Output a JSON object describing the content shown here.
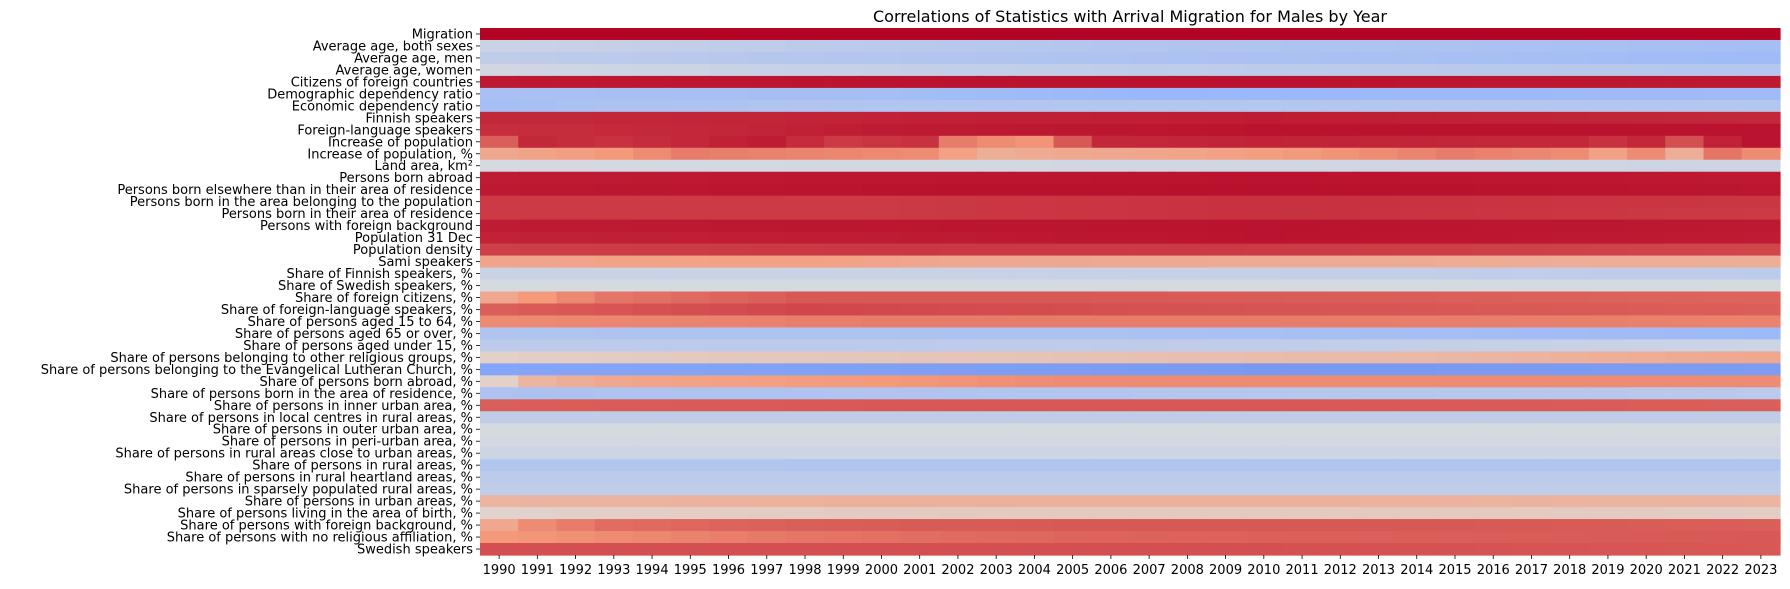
{
  "chart_data": {
    "type": "heatmap",
    "title": "Correlations of Statistics with Arrival Migration for Males by Year",
    "colormap": "coolwarm",
    "vmin": -1,
    "vmax": 1,
    "x": [
      "1990",
      "1991",
      "1992",
      "1993",
      "1994",
      "1995",
      "1996",
      "1997",
      "1998",
      "1999",
      "2000",
      "2001",
      "2002",
      "2003",
      "2004",
      "2005",
      "2006",
      "2007",
      "2008",
      "2009",
      "2010",
      "2011",
      "2012",
      "2013",
      "2014",
      "2015",
      "2016",
      "2017",
      "2018",
      "2019",
      "2020",
      "2021",
      "2022",
      "2023"
    ],
    "y": [
      "Migration",
      "Average age, both sexes",
      "Average age, men",
      "Average age, women",
      "Citizens of foreign countries",
      "Demographic dependency ratio",
      "Economic dependency ratio",
      "Finnish speakers",
      "Foreign-language speakers",
      "Increase of population",
      "Increase of population, %",
      "Land area, km²",
      "Persons born abroad",
      "Persons born elsewhere than in their area of residence",
      "Persons born in the area belonging to the population",
      "Persons born in their area of residence",
      "Persons with foreign background",
      "Population 31 Dec",
      "Population density",
      "Sami speakers",
      "Share of Finnish speakers, %",
      "Share of Swedish speakers, %",
      "Share of foreign citizens, %",
      "Share of foreign-language speakers, %",
      "Share of persons aged 15 to 64, %",
      "Share of persons aged 65 or over, %",
      "Share of persons aged under 15, %",
      "Share of persons belonging to other religious groups, %",
      "Share of persons belonging to the Evangelical Lutheran Church, %",
      "Share of persons born abroad, %",
      "Share of persons born in the area of residence, %",
      "Share of persons in inner urban area, %",
      "Share of persons in local centres in rural areas, %",
      "Share of persons in outer urban area, %",
      "Share of persons in peri-urban area, %",
      "Share of persons in rural areas close to urban areas, %",
      "Share of persons in rural areas, %",
      "Share of persons in rural heartland areas, %",
      "Share of persons in sparsely populated rural areas, %",
      "Share of persons in urban areas, %",
      "Share of persons living in the area of birth, %",
      "Share of persons with foreign background, %",
      "Share of persons with no religious affiliation, %",
      "Swedish speakers"
    ],
    "row_anchors": [
      [
        [
          0,
          1.0
        ],
        [
          33,
          1.0
        ]
      ],
      [
        [
          0,
          -0.12
        ],
        [
          8,
          -0.2
        ],
        [
          17,
          -0.27
        ],
        [
          25,
          -0.3
        ],
        [
          33,
          -0.35
        ]
      ],
      [
        [
          0,
          -0.18
        ],
        [
          8,
          -0.25
        ],
        [
          17,
          -0.3
        ],
        [
          25,
          -0.33
        ],
        [
          33,
          -0.38
        ]
      ],
      [
        [
          0,
          -0.08
        ],
        [
          10,
          -0.15
        ],
        [
          20,
          -0.2
        ],
        [
          33,
          -0.25
        ]
      ],
      [
        [
          0,
          0.93
        ],
        [
          10,
          0.95
        ],
        [
          20,
          0.95
        ],
        [
          33,
          0.93
        ]
      ],
      [
        [
          0,
          -0.32
        ],
        [
          10,
          -0.35
        ],
        [
          17,
          -0.42
        ],
        [
          25,
          -0.4
        ],
        [
          33,
          -0.38
        ]
      ],
      [
        [
          0,
          -0.35
        ],
        [
          3,
          -0.3
        ],
        [
          10,
          -0.27
        ],
        [
          20,
          -0.25
        ],
        [
          33,
          -0.26
        ]
      ],
      [
        [
          0,
          0.88
        ],
        [
          10,
          0.9
        ],
        [
          20,
          0.92
        ],
        [
          33,
          0.88
        ]
      ],
      [
        [
          0,
          0.86
        ],
        [
          5,
          0.88
        ],
        [
          10,
          0.92
        ],
        [
          20,
          0.95
        ],
        [
          33,
          0.95
        ]
      ],
      [
        [
          0,
          0.7
        ],
        [
          1,
          0.88
        ],
        [
          3,
          0.85
        ],
        [
          7,
          0.92
        ],
        [
          9,
          0.82
        ],
        [
          11,
          0.85
        ],
        [
          12,
          0.6
        ],
        [
          13,
          0.55
        ],
        [
          14,
          0.52
        ],
        [
          15,
          0.72
        ],
        [
          16,
          0.88
        ],
        [
          20,
          0.9
        ],
        [
          28,
          0.88
        ],
        [
          29,
          0.85
        ],
        [
          30,
          0.88
        ],
        [
          31,
          0.75
        ],
        [
          32,
          0.9
        ],
        [
          33,
          0.95
        ]
      ],
      [
        [
          0,
          0.4
        ],
        [
          3,
          0.5
        ],
        [
          5,
          0.6
        ],
        [
          11,
          0.55
        ],
        [
          13,
          0.35
        ],
        [
          14,
          0.38
        ],
        [
          18,
          0.42
        ],
        [
          25,
          0.6
        ],
        [
          28,
          0.55
        ],
        [
          29,
          0.45
        ],
        [
          30,
          0.55
        ],
        [
          31,
          0.35
        ],
        [
          32,
          0.62
        ],
        [
          33,
          0.55
        ]
      ],
      [
        [
          0,
          -0.05
        ],
        [
          33,
          -0.1
        ]
      ],
      [
        [
          0,
          0.92
        ],
        [
          10,
          0.94
        ],
        [
          20,
          0.95
        ],
        [
          33,
          0.93
        ]
      ],
      [
        [
          0,
          0.93
        ],
        [
          10,
          0.95
        ],
        [
          20,
          0.96
        ],
        [
          33,
          0.94
        ]
      ],
      [
        [
          0,
          0.82
        ],
        [
          10,
          0.82
        ],
        [
          20,
          0.85
        ],
        [
          33,
          0.83
        ]
      ],
      [
        [
          0,
          0.82
        ],
        [
          10,
          0.82
        ],
        [
          20,
          0.85
        ],
        [
          33,
          0.82
        ]
      ],
      [
        [
          0,
          0.92
        ],
        [
          10,
          0.94
        ],
        [
          20,
          0.95
        ],
        [
          33,
          0.93
        ]
      ],
      [
        [
          0,
          0.9
        ],
        [
          10,
          0.92
        ],
        [
          20,
          0.95
        ],
        [
          33,
          0.92
        ]
      ],
      [
        [
          0,
          0.8
        ],
        [
          10,
          0.83
        ],
        [
          20,
          0.82
        ],
        [
          33,
          0.78
        ]
      ],
      [
        [
          0,
          0.42
        ],
        [
          8,
          0.45
        ],
        [
          12,
          0.4
        ],
        [
          20,
          0.38
        ],
        [
          33,
          0.35
        ]
      ],
      [
        [
          0,
          -0.12
        ],
        [
          10,
          -0.12
        ],
        [
          20,
          -0.15
        ],
        [
          33,
          -0.2
        ]
      ],
      [
        [
          0,
          -0.05
        ],
        [
          33,
          -0.05
        ]
      ],
      [
        [
          0,
          0.4
        ],
        [
          1,
          0.5
        ],
        [
          3,
          0.62
        ],
        [
          8,
          0.72
        ],
        [
          15,
          0.72
        ],
        [
          25,
          0.7
        ],
        [
          33,
          0.68
        ]
      ],
      [
        [
          0,
          0.7
        ],
        [
          2,
          0.72
        ],
        [
          8,
          0.78
        ],
        [
          18,
          0.74
        ],
        [
          25,
          0.72
        ],
        [
          33,
          0.7
        ]
      ],
      [
        [
          0,
          0.55
        ],
        [
          10,
          0.6
        ],
        [
          20,
          0.6
        ],
        [
          33,
          0.58
        ]
      ],
      [
        [
          0,
          -0.28
        ],
        [
          15,
          -0.3
        ],
        [
          25,
          -0.35
        ],
        [
          33,
          -0.4
        ]
      ],
      [
        [
          0,
          -0.2
        ],
        [
          10,
          -0.2
        ],
        [
          20,
          -0.18
        ],
        [
          33,
          -0.1
        ]
      ],
      [
        [
          0,
          0.1
        ],
        [
          5,
          0.15
        ],
        [
          15,
          0.2
        ],
        [
          25,
          0.28
        ],
        [
          33,
          0.4
        ]
      ],
      [
        [
          0,
          -0.55
        ],
        [
          10,
          -0.58
        ],
        [
          20,
          -0.62
        ],
        [
          33,
          -0.6
        ]
      ],
      [
        [
          0,
          0.1
        ],
        [
          1,
          0.3
        ],
        [
          3,
          0.4
        ],
        [
          8,
          0.48
        ],
        [
          15,
          0.55
        ],
        [
          25,
          0.55
        ],
        [
          33,
          0.55
        ]
      ],
      [
        [
          0,
          -0.3
        ],
        [
          10,
          -0.28
        ],
        [
          20,
          -0.25
        ],
        [
          33,
          -0.22
        ]
      ],
      [
        [
          0,
          0.7
        ],
        [
          10,
          0.72
        ],
        [
          20,
          0.72
        ],
        [
          33,
          0.7
        ]
      ],
      [
        [
          0,
          -0.18
        ],
        [
          33,
          -0.18
        ]
      ],
      [
        [
          0,
          -0.05
        ],
        [
          33,
          -0.05
        ]
      ],
      [
        [
          0,
          -0.07
        ],
        [
          33,
          -0.07
        ]
      ],
      [
        [
          0,
          -0.1
        ],
        [
          33,
          -0.1
        ]
      ],
      [
        [
          0,
          -0.27
        ],
        [
          33,
          -0.28
        ]
      ],
      [
        [
          0,
          -0.2
        ],
        [
          33,
          -0.2
        ]
      ],
      [
        [
          0,
          -0.18
        ],
        [
          33,
          -0.18
        ]
      ],
      [
        [
          0,
          0.3
        ],
        [
          10,
          0.33
        ],
        [
          20,
          0.33
        ],
        [
          33,
          0.3
        ]
      ],
      [
        [
          0,
          0.08
        ],
        [
          5,
          0.12
        ],
        [
          15,
          0.15
        ],
        [
          25,
          0.15
        ],
        [
          33,
          0.12
        ]
      ],
      [
        [
          0,
          0.4
        ],
        [
          1,
          0.55
        ],
        [
          3,
          0.65
        ],
        [
          8,
          0.7
        ],
        [
          15,
          0.72
        ],
        [
          25,
          0.72
        ],
        [
          33,
          0.7
        ]
      ],
      [
        [
          0,
          0.5
        ],
        [
          3,
          0.55
        ],
        [
          8,
          0.62
        ],
        [
          15,
          0.68
        ],
        [
          25,
          0.7
        ],
        [
          33,
          0.72
        ]
      ],
      [
        [
          0,
          0.75
        ],
        [
          10,
          0.75
        ],
        [
          20,
          0.75
        ],
        [
          33,
          0.72
        ]
      ]
    ]
  }
}
